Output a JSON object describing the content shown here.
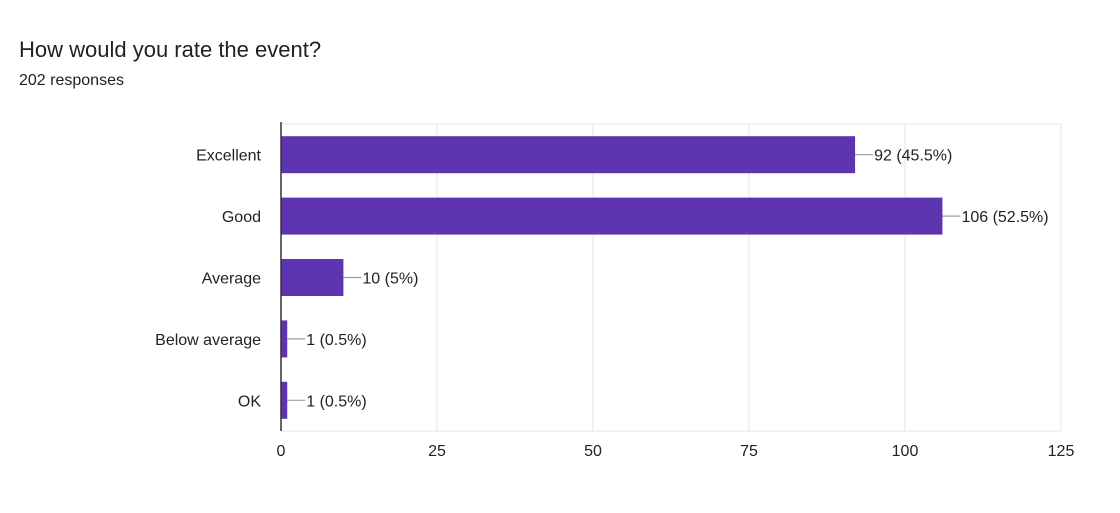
{
  "header": {
    "title": "How would you rate the event?",
    "subtitle": "202 responses"
  },
  "colors": {
    "bar": "#5e35b1",
    "grid": "#e5e5e5",
    "axis": "#333333",
    "leader": "#9e9e9e"
  },
  "chart_data": {
    "type": "bar",
    "orientation": "horizontal",
    "title": "How would you rate the event?",
    "subtitle": "202 responses",
    "categories": [
      "Excellent",
      "Good",
      "Average",
      "Below average",
      "OK"
    ],
    "values": [
      92,
      106,
      10,
      1,
      1
    ],
    "data_labels": [
      "92 (45.5%)",
      "106 (52.5%)",
      "10 (5%)",
      "1 (0.5%)",
      "1 (0.5%)"
    ],
    "xlim": [
      0,
      125
    ],
    "xticks": [
      0,
      25,
      50,
      75,
      100,
      125
    ],
    "grid": true,
    "legend": "none"
  }
}
